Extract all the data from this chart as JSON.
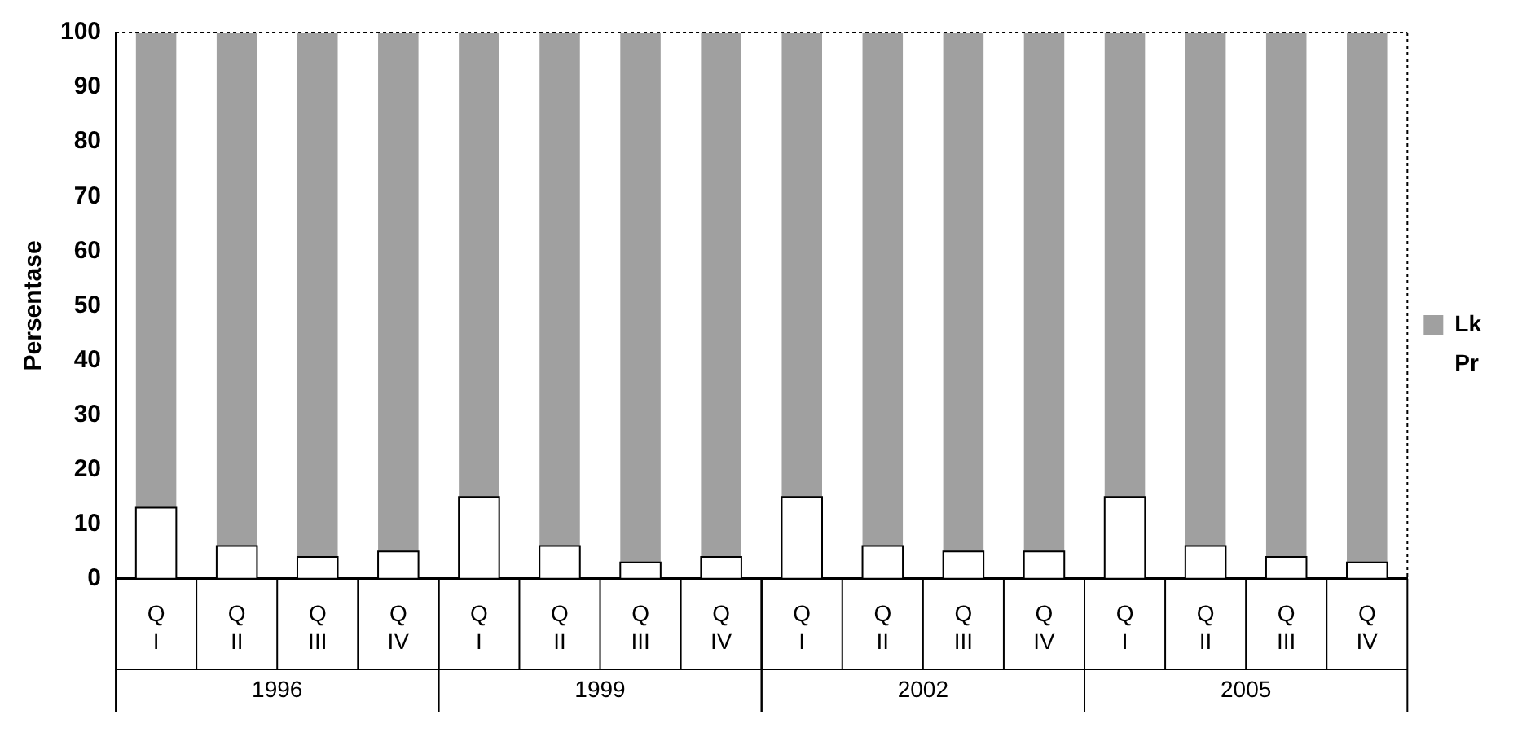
{
  "chart_data": {
    "type": "bar",
    "stacked": true,
    "ylabel": "Persentase",
    "categories": [
      "Q\nI",
      "Q\nII",
      "Q\nIII",
      "Q\nIV",
      "Q\nI",
      "Q\nII",
      "Q\nIII",
      "Q\nIV",
      "Q\nI",
      "Q\nII",
      "Q\nIII",
      "Q\nIV",
      "Q\nI",
      "Q\nII",
      "Q\nIII",
      "Q\nIV"
    ],
    "series": [
      {
        "name": "Pr",
        "color": "#ffffff",
        "values": [
          13,
          6,
          4,
          5,
          15,
          6,
          3,
          4,
          15,
          6,
          5,
          5,
          15,
          6,
          4,
          3
        ]
      },
      {
        "name": "Lk",
        "color": "#a0a0a0",
        "values": [
          87,
          94,
          96,
          95,
          85,
          94,
          97,
          96,
          85,
          94,
          95,
          95,
          85,
          94,
          96,
          97
        ]
      }
    ],
    "annotations": [
      "1996",
      "1999",
      "2002",
      "2005"
    ],
    "ylim": [
      0,
      100
    ],
    "yticks": [
      0,
      10,
      20,
      30,
      40,
      50,
      60,
      70,
      80,
      90,
      100
    ],
    "grid": false,
    "legend": "right"
  }
}
